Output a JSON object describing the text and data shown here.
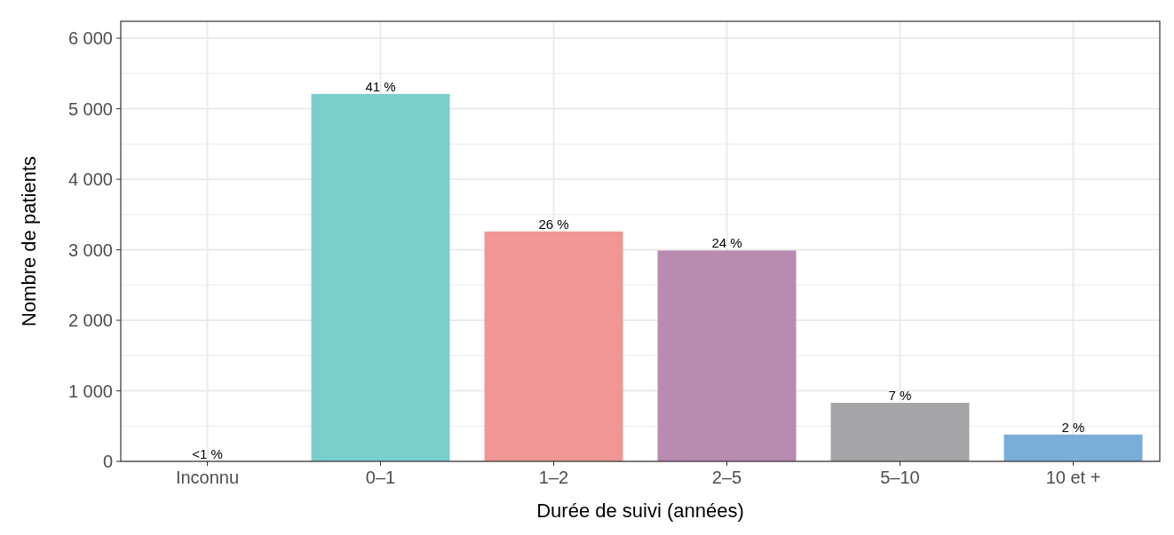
{
  "chart_data": {
    "type": "bar",
    "xlabel": "Durée de suivi (années)",
    "ylabel": "Nombre de patients",
    "categories": [
      "Inconnu",
      "0–1",
      "1–2",
      "2–5",
      "5–10",
      "10 et +"
    ],
    "values": [
      null,
      5210,
      3260,
      2990,
      830,
      380
    ],
    "colors": [
      null,
      "#7acfcd",
      "#f09796",
      "#b88bb0",
      "#a6a5a7",
      "#7aaed8"
    ],
    "annotations": [
      "<1 %",
      {
        "text": "41 %",
        "x": "0–1",
        "y": 5210
      },
      {
        "text": "26 %",
        "x": "1–2",
        "y": 3260
      },
      {
        "text": "24 %",
        "x": "2–5",
        "y": 2990
      },
      {
        "text": "7 %",
        "x": "5–10",
        "y": 830
      },
      {
        "text": "2 %",
        "x": "10 et +",
        "y": 380
      }
    ],
    "ylim": [
      0,
      6240
    ],
    "yticks": [
      {
        "value": 0,
        "label": "0"
      },
      {
        "value": 1000,
        "label": "1 000"
      },
      {
        "value": 2000,
        "label": "2 000"
      },
      {
        "value": 3000,
        "label": "3 000"
      },
      {
        "value": 4000,
        "label": "4 000"
      },
      {
        "value": 5000,
        "label": "5 000"
      },
      {
        "value": 6000,
        "label": "6 000"
      }
    ],
    "grid": true
  }
}
